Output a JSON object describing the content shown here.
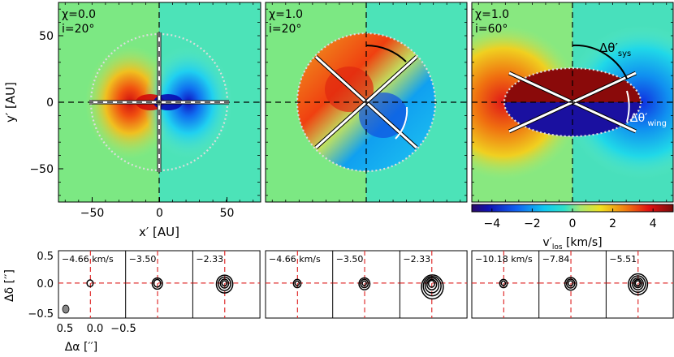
{
  "chart_data": [
    {
      "type": "heatmap",
      "panel": "left",
      "labels": [
        "χ=0.0",
        "i=20°"
      ],
      "chi": 0.0,
      "inclination_deg": 20,
      "xlabel": "x′ [AU]",
      "ylabel": "y′ [AU]",
      "xlim": [
        -75,
        75
      ],
      "ylim": [
        -75,
        75
      ],
      "xticks": [
        -50,
        0,
        50
      ],
      "yticks": [
        -50,
        0,
        50
      ]
    },
    {
      "type": "heatmap",
      "panel": "middle",
      "labels": [
        "χ=1.0",
        "i=20°"
      ],
      "chi": 1.0,
      "inclination_deg": 20,
      "xlim": [
        -75,
        75
      ],
      "ylim": [
        -75,
        75
      ]
    },
    {
      "type": "heatmap",
      "panel": "right",
      "labels": [
        "χ=1.0",
        "i=60°"
      ],
      "chi": 1.0,
      "inclination_deg": 60,
      "xlim": [
        -75,
        75
      ],
      "ylim": [
        -75,
        75
      ],
      "annotations": [
        "Δθ′",
        "sys",
        "Δθ′",
        "wing"
      ]
    }
  ],
  "colorbar": {
    "label": "v′",
    "label_sub": "los",
    "label_unit": " [km/s]",
    "range": [
      -5,
      5
    ],
    "ticks": [
      "−4",
      "−2",
      "0",
      "2",
      "4"
    ],
    "tick_values": [
      -4,
      -2,
      0,
      2,
      4
    ]
  },
  "channel_maps": {
    "xlabel": "Δα [′′]",
    "ylabel": "Δδ [′′]",
    "xticks": [
      "0.5",
      "0.0",
      "−0.5"
    ],
    "yticks": [
      "0.5",
      "0.0",
      "−0.5"
    ],
    "groups": [
      {
        "velocities": [
          "−4.66 km/s",
          "−3.50",
          "−2.33"
        ]
      },
      {
        "velocities": [
          "−4.66 km/s",
          "−3.50",
          "−2.33"
        ]
      },
      {
        "velocities": [
          "−10.18 km/s",
          "−7.84",
          "−5.51"
        ]
      }
    ]
  }
}
